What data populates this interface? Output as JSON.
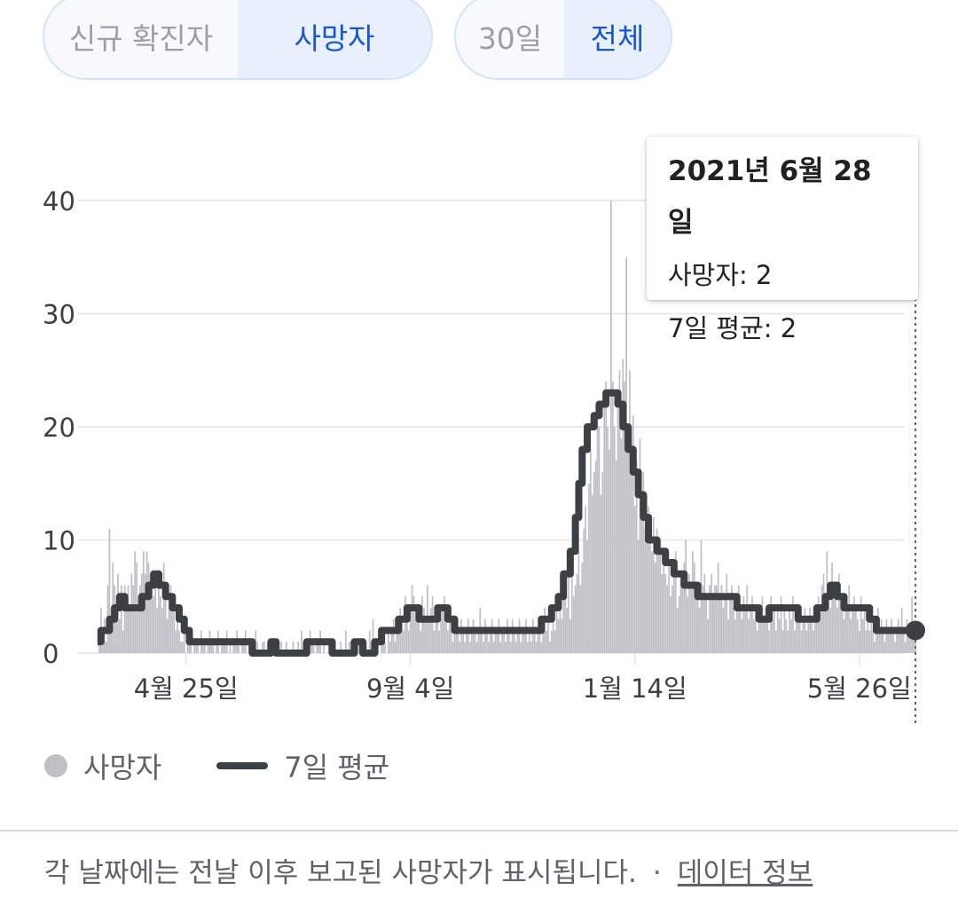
{
  "toggles": {
    "metric": [
      "신규 확진자",
      "사망자"
    ],
    "range": [
      "30일",
      "전체"
    ]
  },
  "tooltip": {
    "date": "2021년 6월 28일",
    "deaths_label": "사망자: 2",
    "avg_label": "7일 평균: 2"
  },
  "legend": {
    "bars": "사망자",
    "line": "7일 평균"
  },
  "footer": {
    "note": "각 날짜에는 전날 이후 보고된 사망자가 표시됩니다.",
    "separator": "·",
    "link": "데이터 정보"
  },
  "colors": {
    "bar": "#bdc1c6",
    "line": "#3c4043",
    "grid": "#e8eaed",
    "selected": "#1a57c9"
  },
  "chart_data": {
    "type": "bar",
    "grid": true,
    "x_range": [
      "2020-03-04",
      "2021-06-28"
    ],
    "ylim": [
      0,
      40
    ],
    "yticks": [
      0,
      10,
      20,
      30,
      40
    ],
    "xticks": [
      {
        "date": "2020-04-25",
        "label": "4월 25일"
      },
      {
        "date": "2020-09-04",
        "label": "9월 4일"
      },
      {
        "date": "2021-01-14",
        "label": "1월 14일"
      },
      {
        "date": "2021-05-26",
        "label": "5월 26일"
      }
    ],
    "series": [
      {
        "name": "사망자",
        "type": "bar",
        "values_by_segment": [
          [
            [
              "2020-03-04",
              "2020-03-31"
            ],
            [
              0,
              2,
              4,
              2,
              3,
              1,
              6,
              11,
              4,
              8,
              6,
              5,
              7,
              3,
              6,
              2,
              6,
              5,
              6,
              4,
              7,
              6,
              9,
              8,
              5,
              6,
              7,
              9
            ]
          ],
          [
            [
              "2020-04-01",
              "2020-04-30"
            ],
            [
              7,
              9,
              8,
              7,
              6,
              5,
              6,
              4,
              6,
              5,
              4,
              8,
              5,
              3,
              5,
              6,
              4,
              4,
              2,
              3,
              2,
              1,
              1,
              2,
              0,
              1,
              2,
              1,
              0,
              1
            ]
          ],
          [
            [
              "2020-05-01",
              "2020-05-31"
            ],
            [
              1,
              1,
              0,
              2,
              1,
              1,
              0,
              1,
              2,
              1,
              1,
              0,
              1,
              2,
              0,
              1,
              1,
              1,
              2,
              0,
              1,
              0,
              1,
              1,
              2,
              1,
              0,
              1,
              1,
              2,
              0
            ]
          ],
          [
            [
              "2020-06-01",
              "2020-06-30"
            ],
            [
              1,
              1,
              0,
              1,
              2,
              1,
              0,
              0,
              1,
              1,
              0,
              1,
              0,
              0,
              1,
              0,
              1,
              0,
              0,
              1,
              0,
              0,
              1,
              0,
              0,
              0,
              1,
              0,
              0,
              1
            ]
          ],
          [
            [
              "2020-07-01",
              "2020-07-31"
            ],
            [
              0,
              2,
              1,
              1,
              0,
              1,
              2,
              1,
              1,
              0,
              1,
              1,
              2,
              0,
              1,
              0,
              0,
              1,
              0,
              0,
              1,
              0,
              0,
              0,
              1,
              0,
              0,
              2,
              0,
              1,
              1
            ]
          ],
          [
            [
              "2020-08-01",
              "2020-08-31"
            ],
            [
              0,
              0,
              0,
              1,
              1,
              0,
              0,
              0,
              1,
              0,
              2,
              1,
              3,
              0,
              1,
              1,
              0,
              2,
              1,
              1,
              0,
              2,
              1,
              2,
              3,
              1,
              2,
              2,
              4,
              3,
              2
            ]
          ],
          [
            [
              "2020-09-01",
              "2020-09-30"
            ],
            [
              5,
              3,
              2,
              4,
              6,
              5,
              3,
              4,
              3,
              2,
              5,
              4,
              3,
              6,
              3,
              4,
              5,
              2,
              4,
              3,
              2,
              3,
              4,
              5,
              3,
              2,
              4,
              3,
              1,
              2
            ]
          ],
          [
            [
              "2020-10-01",
              "2020-10-31"
            ],
            [
              3,
              2,
              1,
              3,
              2,
              1,
              2,
              3,
              1,
              2,
              3,
              2,
              1,
              2,
              4,
              2,
              1,
              3,
              2,
              1,
              2,
              3,
              1,
              2,
              2,
              3,
              1,
              2,
              2,
              1,
              3
            ]
          ],
          [
            [
              "2020-11-01",
              "2020-11-30"
            ],
            [
              2,
              1,
              3,
              2,
              1,
              2,
              3,
              1,
              2,
              2,
              3,
              1,
              2,
              1,
              3,
              2,
              1,
              2,
              3,
              1,
              2,
              4,
              2,
              3,
              1,
              2,
              3,
              2,
              5,
              3
            ]
          ],
          [
            [
              "2020-12-01",
              "2020-12-31"
            ],
            [
              4,
              3,
              5,
              6,
              4,
              7,
              3,
              8,
              5,
              6,
              7,
              9,
              6,
              8,
              11,
              13,
              10,
              15,
              18,
              14,
              16,
              17,
              22,
              20,
              14,
              16,
              23,
              24,
              20,
              18,
              40
            ]
          ],
          [
            [
              "2021-01-01",
              "2021-01-31"
            ],
            [
              24,
              20,
              17,
              22,
              25,
              19,
              26,
              24,
              35,
              18,
              25,
              20,
              21,
              13,
              17,
              10,
              19,
              12,
              16,
              11,
              14,
              13,
              10,
              9,
              12,
              8,
              11,
              9,
              10,
              7,
              8
            ]
          ],
          [
            [
              "2021-02-01",
              "2021-02-28"
            ],
            [
              7,
              6,
              8,
              5,
              6,
              7,
              9,
              4,
              5,
              7,
              6,
              8,
              10,
              5,
              7,
              6,
              9,
              8,
              6,
              5,
              4,
              10,
              6,
              7,
              5,
              3,
              6,
              7,
              5,
              6
            ]
          ],
          [
            [
              "2021-03-01",
              "2021-03-31"
            ],
            [
              5,
              4,
              6,
              8,
              5,
              6,
              4,
              5,
              7,
              3,
              5,
              6,
              4,
              3,
              5,
              6,
              4,
              3,
              5,
              4,
              6,
              3,
              4,
              5,
              3,
              4,
              2,
              4,
              3,
              5,
              3
            ]
          ],
          [
            [
              "2021-04-01",
              "2021-04-30"
            ],
            [
              4,
              3,
              2,
              5,
              3,
              4,
              2,
              4,
              3,
              5,
              2,
              4,
              3,
              2,
              4,
              3,
              5,
              2,
              3,
              4,
              3,
              2,
              3,
              4,
              2,
              3,
              4,
              3,
              2,
              4
            ]
          ],
          [
            [
              "2021-05-01",
              "2021-05-31"
            ],
            [
              3,
              5,
              4,
              6,
              7,
              5,
              9,
              6,
              4,
              8,
              5,
              6,
              4,
              7,
              5,
              4,
              3,
              5,
              4,
              6,
              3,
              4,
              5,
              4,
              3,
              2,
              5,
              3,
              4,
              2,
              3
            ]
          ],
          [
            [
              "2021-06-01",
              "2021-06-28"
            ],
            [
              2,
              3,
              2,
              1,
              2,
              4,
              2,
              3,
              2,
              1,
              3,
              2,
              2,
              3,
              2,
              1,
              2,
              3,
              2,
              4,
              2,
              1,
              3,
              2,
              2,
              5,
              2,
              2
            ]
          ]
        ]
      },
      {
        "name": "7일 평균",
        "type": "line",
        "points": [
          [
            "2020-03-04",
            1
          ],
          [
            "2020-03-06",
            2
          ],
          [
            "2020-03-11",
            3
          ],
          [
            "2020-03-14",
            4
          ],
          [
            "2020-03-17",
            5
          ],
          [
            "2020-03-20",
            4
          ],
          [
            "2020-03-30",
            5
          ],
          [
            "2020-04-03",
            6
          ],
          [
            "2020-04-06",
            7
          ],
          [
            "2020-04-09",
            6
          ],
          [
            "2020-04-13",
            5
          ],
          [
            "2020-04-17",
            4
          ],
          [
            "2020-04-21",
            3
          ],
          [
            "2020-04-24",
            2
          ],
          [
            "2020-04-27",
            1
          ],
          [
            "2020-05-31",
            1
          ],
          [
            "2020-06-03",
            0
          ],
          [
            "2020-06-14",
            1
          ],
          [
            "2020-06-17",
            0
          ],
          [
            "2020-07-05",
            1
          ],
          [
            "2020-07-20",
            0
          ],
          [
            "2020-08-02",
            1
          ],
          [
            "2020-08-07",
            0
          ],
          [
            "2020-08-14",
            1
          ],
          [
            "2020-08-18",
            2
          ],
          [
            "2020-08-28",
            3
          ],
          [
            "2020-09-02",
            4
          ],
          [
            "2020-09-09",
            3
          ],
          [
            "2020-09-20",
            4
          ],
          [
            "2020-09-26",
            3
          ],
          [
            "2020-09-30",
            2
          ],
          [
            "2020-11-20",
            3
          ],
          [
            "2020-11-26",
            4
          ],
          [
            "2020-11-30",
            5
          ],
          [
            "2020-12-03",
            7
          ],
          [
            "2020-12-07",
            9
          ],
          [
            "2020-12-10",
            12
          ],
          [
            "2020-12-12",
            15
          ],
          [
            "2020-12-14",
            18
          ],
          [
            "2020-12-17",
            20
          ],
          [
            "2020-12-21",
            21
          ],
          [
            "2020-12-24",
            22
          ],
          [
            "2020-12-28",
            23
          ],
          [
            "2021-01-04",
            22
          ],
          [
            "2021-01-07",
            20
          ],
          [
            "2021-01-10",
            18
          ],
          [
            "2021-01-13",
            16
          ],
          [
            "2021-01-16",
            14
          ],
          [
            "2021-01-19",
            12
          ],
          [
            "2021-01-22",
            10
          ],
          [
            "2021-01-27",
            9
          ],
          [
            "2021-02-01",
            8
          ],
          [
            "2021-02-06",
            7
          ],
          [
            "2021-02-12",
            6
          ],
          [
            "2021-02-20",
            5
          ],
          [
            "2021-03-06",
            5
          ],
          [
            "2021-03-15",
            4
          ],
          [
            "2021-03-28",
            3
          ],
          [
            "2021-04-03",
            4
          ],
          [
            "2021-04-20",
            3
          ],
          [
            "2021-05-01",
            4
          ],
          [
            "2021-05-06",
            5
          ],
          [
            "2021-05-09",
            6
          ],
          [
            "2021-05-13",
            5
          ],
          [
            "2021-05-17",
            4
          ],
          [
            "2021-06-01",
            3
          ],
          [
            "2021-06-05",
            2
          ],
          [
            "2021-06-28",
            2
          ]
        ]
      }
    ],
    "highlight": {
      "date": "2021-06-28",
      "deaths": 2,
      "avg": 2
    }
  }
}
